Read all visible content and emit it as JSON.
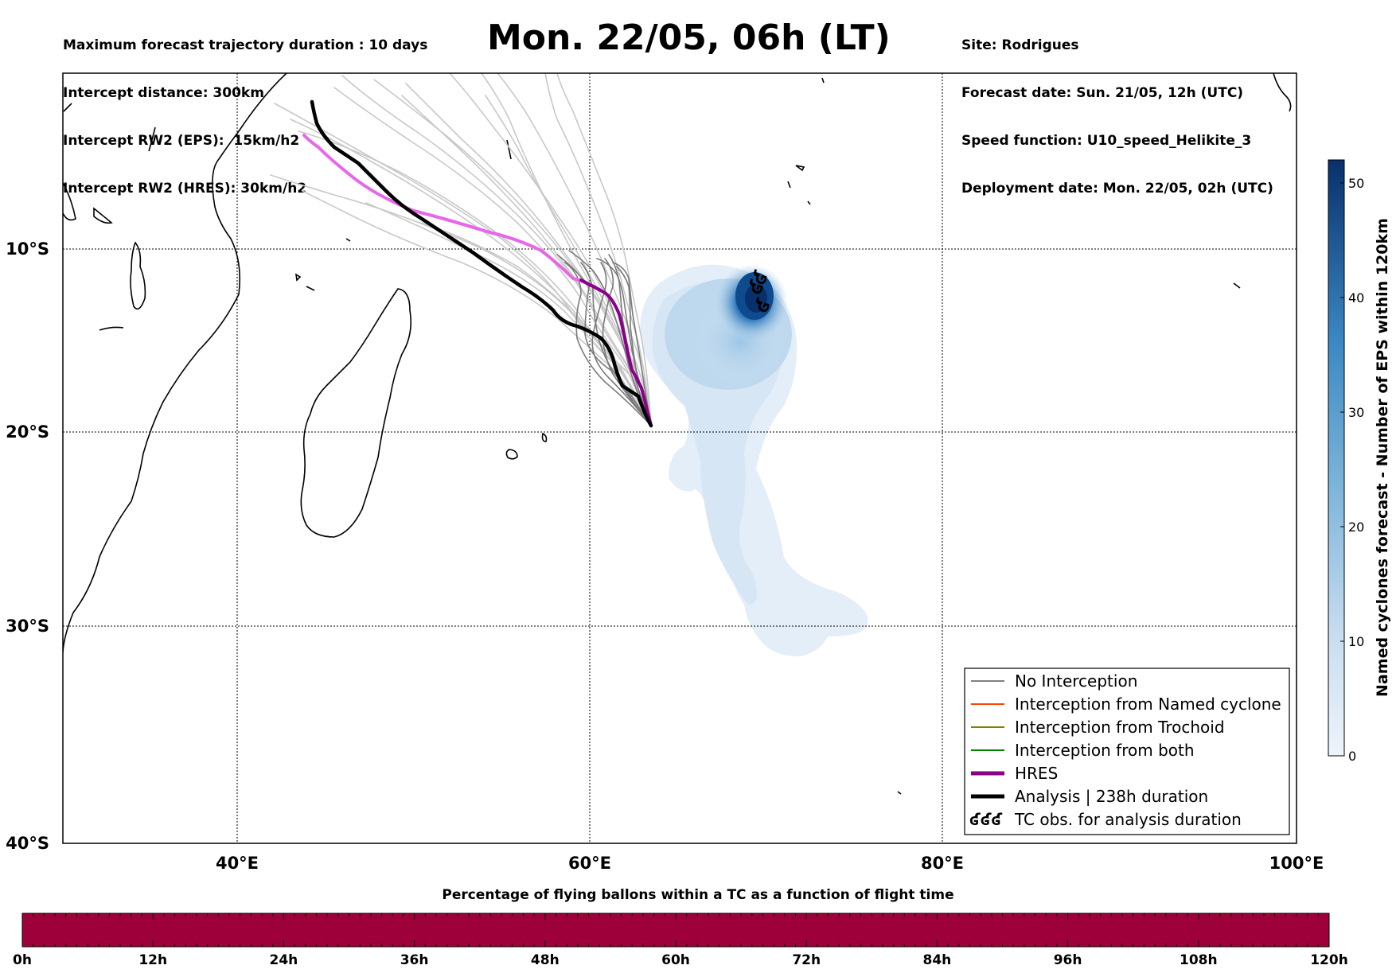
{
  "header_left": {
    "line1": "Maximum forecast trajectory duration : 10 days",
    "line2": "Intercept distance: 300km",
    "line3": "Intercept RW2 (EPS):  15km/h2",
    "line4": "Intercept RW2 (HRES): 30km/h2"
  },
  "title": "Mon. 22/05, 06h (LT)",
  "header_right": {
    "line1": "Site: Rodrigues",
    "line2": "Forecast date: Sun. 21/05, 12h (UTC)",
    "line3": "Speed function: U10_speed_Helikite_3",
    "line4": "Deployment date: Mon. 22/05, 02h (UTC)"
  },
  "map": {
    "lon_labels": [
      "40°E",
      "60°E",
      "80°E",
      "100°E"
    ],
    "lat_labels": [
      "10°S",
      "20°S",
      "30°S",
      "40°S"
    ],
    "lon_range": [
      30,
      100
    ],
    "lat_range": [
      -40,
      -2
    ],
    "release_site": {
      "name": "Rodrigues",
      "lon": 63.4,
      "lat": -19.7
    }
  },
  "legend": {
    "items": [
      {
        "label": "No Interception",
        "color": "#808080",
        "width": 2
      },
      {
        "label": "Interception from Named cyclone",
        "color": "#ff4500",
        "width": 2
      },
      {
        "label": "Interception from Trochoid",
        "color": "#808000",
        "width": 2
      },
      {
        "label": "Interception from both",
        "color": "#008000",
        "width": 2
      },
      {
        "label": "HRES",
        "color": "#8b008b",
        "width": 5
      },
      {
        "label": "Analysis | 238h duration",
        "color": "#000000",
        "width": 5
      },
      {
        "label": "TC obs. for analysis duration",
        "symbol": "ʛʛʛ"
      }
    ]
  },
  "colorbar": {
    "label": "Named cyclones forecast - Number of EPS within 120km",
    "ticks": [
      "0",
      "10",
      "20",
      "30",
      "40",
      "50"
    ],
    "min": 0,
    "max": 52,
    "colors": [
      "#eaf2fb",
      "#08306b"
    ]
  },
  "timebar": {
    "title": "Percentage of flying ballons within a TC as a function of flight time",
    "ticks": [
      "0h",
      "12h",
      "24h",
      "36h",
      "48h",
      "60h",
      "72h",
      "84h",
      "96h",
      "108h",
      "120h"
    ],
    "color": "#9e003a"
  },
  "tc_obs_symbols": [
    "ʛ",
    "ʛ",
    "ʛ"
  ]
}
